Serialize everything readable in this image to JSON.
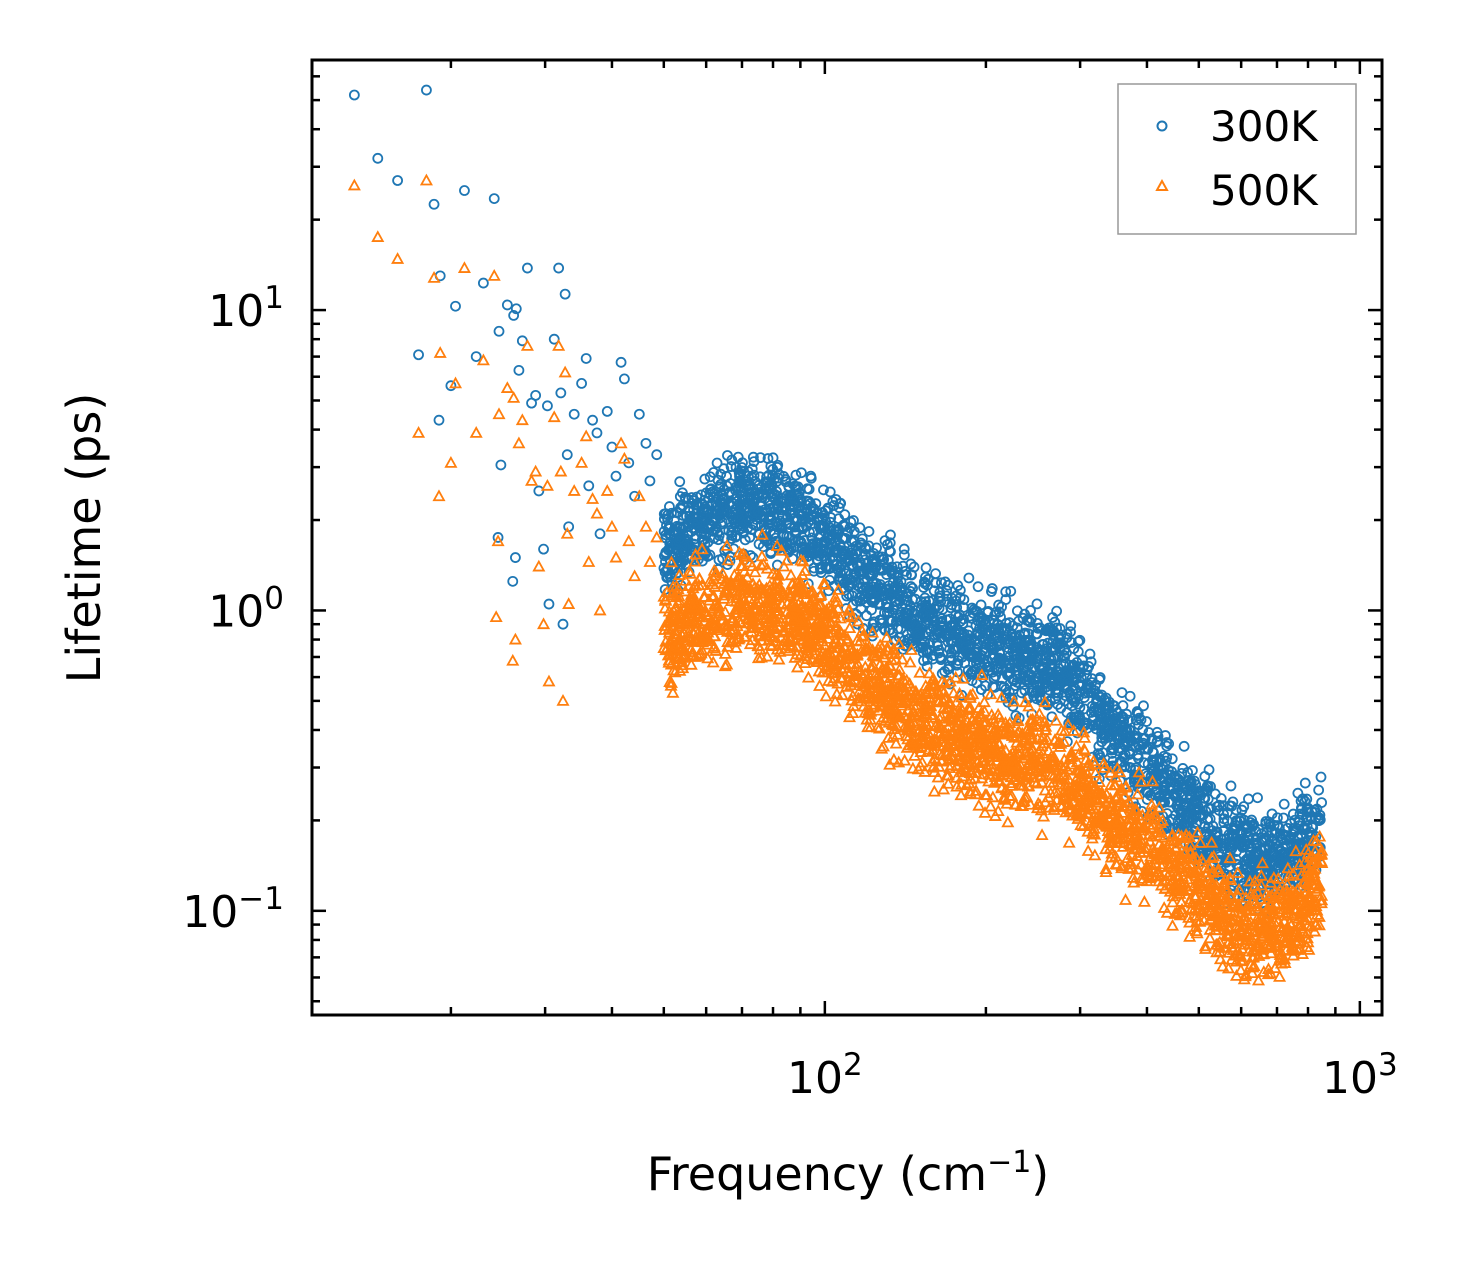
{
  "chart_data": {
    "type": "scatter",
    "title": "",
    "xlabel": "Frequency (cm⁻¹)",
    "xlabel_base": "Frequency (cm",
    "xlabel_sup": "−1",
    "xlabel_end": ")",
    "ylabel": "Lifetime (ps)",
    "xscale": "log",
    "yscale": "log",
    "xlim": [
      11,
      1100
    ],
    "ylim": [
      0.045,
      68
    ],
    "x_ticks": [
      {
        "value": 100,
        "base": "10",
        "exp": "2"
      },
      {
        "value": 1000,
        "base": "10",
        "exp": "3"
      }
    ],
    "y_ticks": [
      {
        "value": 0.1,
        "base": "10",
        "exp": "−1"
      },
      {
        "value": 1,
        "base": "10",
        "exp": "0"
      },
      {
        "value": 10,
        "base": "10",
        "exp": "1"
      }
    ],
    "legend": {
      "position": "top-right",
      "entries": [
        "300K",
        "500K"
      ]
    },
    "series": [
      {
        "name": "300K",
        "marker": "circle",
        "color": "#1f77b4",
        "points": [
          [
            13.2,
            52
          ],
          [
            14.6,
            32
          ],
          [
            15.9,
            27
          ],
          [
            17.4,
            7.1
          ],
          [
            18.0,
            54
          ],
          [
            18.6,
            22.5
          ],
          [
            19.1,
            13
          ],
          [
            19.0,
            4.3
          ],
          [
            20.0,
            5.6
          ],
          [
            20.4,
            10.3
          ],
          [
            21.2,
            25
          ],
          [
            22.3,
            7.0
          ],
          [
            23.0,
            12.3
          ],
          [
            24.1,
            23.5
          ],
          [
            24.6,
            8.5
          ],
          [
            24.8,
            3.05
          ],
          [
            24.5,
            1.75
          ],
          [
            25.5,
            10.4
          ],
          [
            26.2,
            9.6
          ],
          [
            26.5,
            10.1
          ],
          [
            26.8,
            6.3
          ],
          [
            26.4,
            1.5
          ],
          [
            26.1,
            1.25
          ],
          [
            27.2,
            7.9
          ],
          [
            27.8,
            13.8
          ],
          [
            28.3,
            4.9
          ],
          [
            28.8,
            5.2
          ],
          [
            29.2,
            2.5
          ],
          [
            29.8,
            1.6
          ],
          [
            30.3,
            4.8
          ],
          [
            30.5,
            1.05
          ],
          [
            31.2,
            8.0
          ],
          [
            31.8,
            13.8
          ],
          [
            32.1,
            5.3
          ],
          [
            32.7,
            11.3
          ],
          [
            33.0,
            3.3
          ],
          [
            33.2,
            1.9
          ],
          [
            32.4,
            0.9
          ],
          [
            34.0,
            4.5
          ],
          [
            35.1,
            5.7
          ],
          [
            35.8,
            6.9
          ],
          [
            36.2,
            2.6
          ],
          [
            36.8,
            4.3
          ],
          [
            37.5,
            3.9
          ],
          [
            38.0,
            1.8
          ],
          [
            39.2,
            4.6
          ],
          [
            40.0,
            3.5
          ],
          [
            40.7,
            2.8
          ],
          [
            41.6,
            6.7
          ],
          [
            42.2,
            5.9
          ],
          [
            43.0,
            3.1
          ],
          [
            44.1,
            2.4
          ],
          [
            45.0,
            4.5
          ],
          [
            46.3,
            3.6
          ],
          [
            47.1,
            2.7
          ],
          [
            48.5,
            3.3
          ]
        ]
      },
      {
        "name": "500K",
        "marker": "triangle",
        "color": "#ff7f0e",
        "points": [
          [
            13.2,
            26
          ],
          [
            14.6,
            17.5
          ],
          [
            15.9,
            14.8
          ],
          [
            17.4,
            3.9
          ],
          [
            18.0,
            27
          ],
          [
            18.6,
            12.8
          ],
          [
            19.1,
            7.2
          ],
          [
            19.0,
            2.4
          ],
          [
            20.0,
            3.1
          ],
          [
            20.4,
            5.7
          ],
          [
            21.2,
            13.8
          ],
          [
            22.3,
            3.9
          ],
          [
            23.0,
            6.8
          ],
          [
            24.1,
            13
          ],
          [
            24.6,
            4.5
          ],
          [
            24.5,
            1.7
          ],
          [
            24.3,
            0.95
          ],
          [
            25.5,
            5.5
          ],
          [
            26.2,
            5.1
          ],
          [
            26.8,
            3.6
          ],
          [
            26.4,
            0.8
          ],
          [
            26.1,
            0.68
          ],
          [
            27.2,
            4.3
          ],
          [
            27.8,
            7.6
          ],
          [
            28.3,
            2.7
          ],
          [
            28.8,
            2.9
          ],
          [
            29.2,
            1.4
          ],
          [
            29.8,
            0.9
          ],
          [
            30.3,
            2.6
          ],
          [
            30.5,
            0.58
          ],
          [
            31.2,
            4.4
          ],
          [
            31.8,
            7.6
          ],
          [
            32.1,
            2.9
          ],
          [
            32.7,
            6.2
          ],
          [
            33.0,
            1.8
          ],
          [
            33.2,
            1.05
          ],
          [
            32.4,
            0.5
          ],
          [
            34.0,
            2.5
          ],
          [
            35.1,
            3.1
          ],
          [
            35.8,
            3.8
          ],
          [
            36.2,
            1.45
          ],
          [
            36.8,
            2.35
          ],
          [
            37.5,
            2.1
          ],
          [
            38.0,
            1.0
          ],
          [
            39.2,
            2.5
          ],
          [
            40.0,
            1.9
          ],
          [
            40.7,
            1.5
          ],
          [
            41.6,
            3.6
          ],
          [
            42.2,
            3.2
          ],
          [
            43.0,
            1.7
          ],
          [
            44.1,
            1.3
          ],
          [
            45.0,
            2.4
          ],
          [
            46.3,
            1.9
          ],
          [
            47.1,
            1.45
          ],
          [
            48.5,
            1.75
          ]
        ]
      }
    ],
    "dense_trend": [
      {
        "x": 50,
        "y300": 1.6,
        "y500": 0.85
      },
      {
        "x": 70,
        "y300": 2.3,
        "y500": 1.05
      },
      {
        "x": 90,
        "y300": 2.0,
        "y500": 0.95
      },
      {
        "x": 120,
        "y300": 1.25,
        "y500": 0.6
      },
      {
        "x": 150,
        "y300": 0.95,
        "y500": 0.45
      },
      {
        "x": 200,
        "y300": 0.75,
        "y500": 0.34
      },
      {
        "x": 270,
        "y300": 0.66,
        "y500": 0.3
      },
      {
        "x": 350,
        "y300": 0.38,
        "y500": 0.2
      },
      {
        "x": 450,
        "y300": 0.25,
        "y500": 0.14
      },
      {
        "x": 560,
        "y300": 0.17,
        "y500": 0.095
      },
      {
        "x": 650,
        "y300": 0.15,
        "y500": 0.085
      },
      {
        "x": 770,
        "y300": 0.16,
        "y500": 0.1
      },
      {
        "x": 850,
        "y300": 0.2,
        "y500": 0.13
      }
    ]
  }
}
